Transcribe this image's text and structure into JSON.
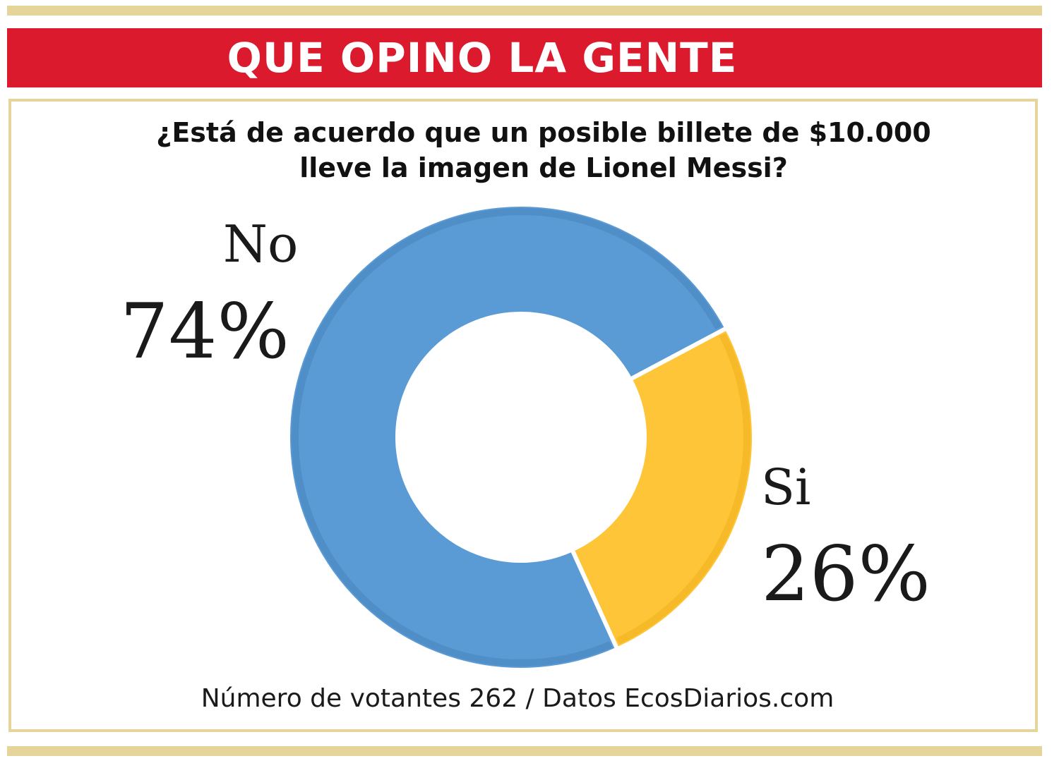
{
  "header": {
    "title": "QUE OPINO LA GENTE"
  },
  "question": {
    "line1": "¿Está de acuerdo que un posible billete de $10.000",
    "line2": "lleve la imagen de Lionel Messi?"
  },
  "chart_data": {
    "type": "pie",
    "variant": "donut",
    "categories": [
      "No",
      "Si"
    ],
    "values": [
      74,
      26
    ],
    "value_labels": [
      "74%",
      "26%"
    ],
    "colors": [
      "#5b9bd5",
      "#fec538"
    ]
  },
  "footer": {
    "source": "Número de votantes 262 / Datos EcosDiarios.com"
  },
  "colors": {
    "header_red": "#dc1a2e",
    "frame_gold": "#e6d59a"
  }
}
